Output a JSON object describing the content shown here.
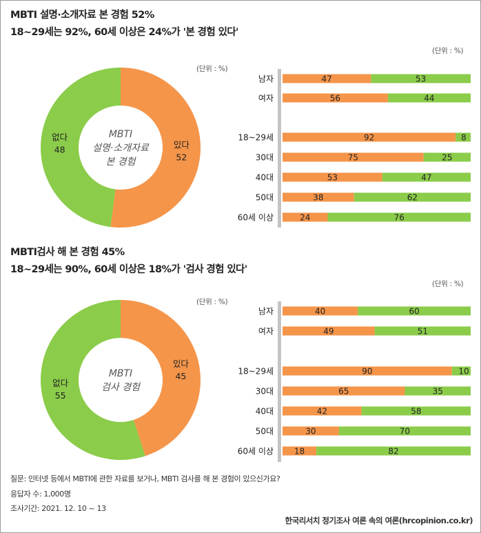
{
  "colors": {
    "yes": "#f5954a",
    "no": "#8bcc4a",
    "divider": "#c4c4c4"
  },
  "chart_data": [
    {
      "type": "pie",
      "title_line1": "MBTI 설명·소개자료 본 경험 52%",
      "title_line2": "18~29세는 92%, 60세 이상은 24%가 '본 경험 있다'",
      "unit": "(단위 : %)",
      "center_lines": [
        "MBTI",
        "설명·소개자료",
        "본 경험"
      ],
      "slices": [
        {
          "label": "있다",
          "value": 52
        },
        {
          "label": "없다",
          "value": 48
        }
      ]
    },
    {
      "type": "bar",
      "unit": "(단위 : %)",
      "categories": [
        "남자",
        "여자",
        "18~29세",
        "30대",
        "40대",
        "50대",
        "60세 이상"
      ],
      "series": [
        {
          "values": [
            47,
            56,
            92,
            75,
            53,
            38,
            24
          ]
        },
        {
          "values": [
            53,
            44,
            8,
            25,
            47,
            62,
            76
          ]
        }
      ]
    },
    {
      "type": "pie",
      "title_line1": "MBTI검사 해 본 경험 45%",
      "title_line2": "18~29세는 90%, 60세 이상은 18%가 '검사 경험 있다'",
      "unit": "(단위 : %)",
      "center_lines": [
        "MBTI",
        "검사 경험"
      ],
      "slices": [
        {
          "label": "있다",
          "value": 45
        },
        {
          "label": "없다",
          "value": 55
        }
      ]
    },
    {
      "type": "bar",
      "unit": "(단위 : %)",
      "categories": [
        "남자",
        "여자",
        "18~29세",
        "30대",
        "40대",
        "50대",
        "60세 이상"
      ],
      "series": [
        {
          "values": [
            40,
            49,
            90,
            65,
            42,
            30,
            18
          ]
        },
        {
          "values": [
            60,
            51,
            10,
            35,
            58,
            70,
            82
          ]
        }
      ]
    }
  ],
  "footer": {
    "question": "질문:  인터넷 등에서 MBTI에 관한 자료를 보거나, MBTI 검사를 해 본 경험이 있으신가요?",
    "respondents": "응답자 수: 1,000명",
    "period": "조사기간: 2021. 12. 10 ~ 13",
    "source": "한국리서치 정기조사 여론 속의 여론(hrcopinion.co.kr)"
  }
}
